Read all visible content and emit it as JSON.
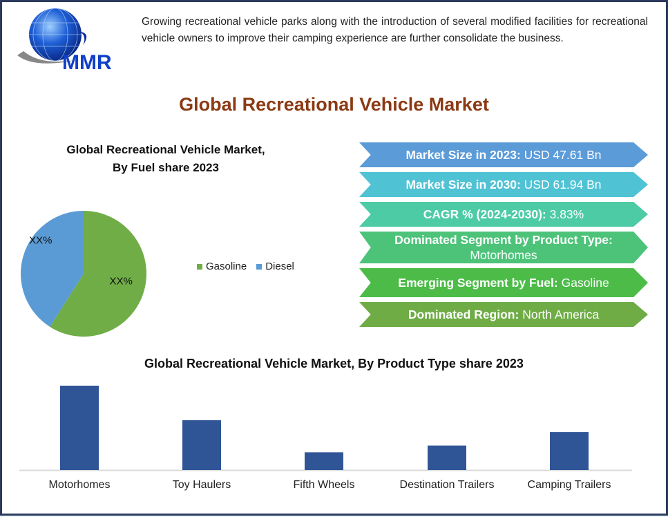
{
  "logo": {
    "text": "MMR"
  },
  "intro": "Growing recreational vehicle parks along with the introduction of several modified facilities for recreational vehicle owners to improve their camping experience are further consolidate the business.",
  "title": "Global Recreational Vehicle Market",
  "facts": [
    {
      "label": "Market Size in 2023:",
      "value": "USD 47.61 Bn",
      "color": "#5b9bd8"
    },
    {
      "label": "Market Size in 2030:",
      "value": "USD 61.94 Bn",
      "color": "#4fc2d4"
    },
    {
      "label": "CAGR % (2024-2030):",
      "value": "3.83%",
      "color": "#4ccba4"
    },
    {
      "label": "Dominated Segment by Product Type:",
      "value": "Motorhomes",
      "color": "#4dc37a"
    },
    {
      "label": "Emerging Segment by Fuel:",
      "value": "Gasoline",
      "color": "#4cbb48"
    },
    {
      "label": "Dominated Region:",
      "value": "North America",
      "color": "#6fac46"
    }
  ],
  "chart_data": [
    {
      "type": "pie",
      "title_line1": "Global Recreational Vehicle Market,",
      "title_line2": "By Fuel share  2023",
      "labels": [
        "Gasoline",
        "Diesel"
      ],
      "values": [
        59,
        41
      ],
      "data_labels": [
        "XX%",
        "XX%"
      ],
      "colors": [
        "#70ad47",
        "#5b9bd5"
      ],
      "legend": "right"
    },
    {
      "type": "bar",
      "title": "Global Recreational Vehicle Market, By  Product Type share  2023",
      "categories": [
        "Motorhomes",
        "Toy Haulers",
        "Fifth Wheels",
        "Destination Trailers",
        "Camping Trailers"
      ],
      "values": [
        100,
        59,
        21,
        29,
        45
      ],
      "ylim": [
        0,
        100
      ],
      "color": "#2f5597",
      "grid": false
    }
  ]
}
